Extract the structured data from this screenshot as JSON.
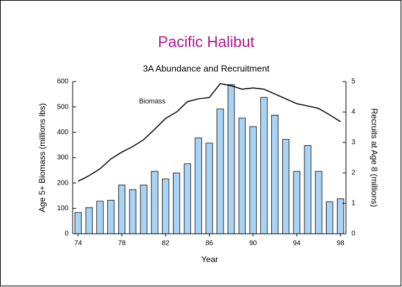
{
  "chart_data": {
    "type": "bar_line",
    "title": "Pacific Halibut",
    "subtitle": "3A Abundance and Recruitment",
    "x_label": "Year",
    "y_label": "Age 5+ Biomass (millions lbs)",
    "y2_label": "Recruits at Age 8 (millions)",
    "annotation": "Biomass",
    "x": [
      1974,
      1975,
      1976,
      1977,
      1978,
      1979,
      1980,
      1981,
      1982,
      1983,
      1984,
      1985,
      1986,
      1987,
      1988,
      1989,
      1990,
      1991,
      1992,
      1993,
      1994,
      1995,
      1996,
      1997,
      1998
    ],
    "xlim": [
      1973.5,
      1998.5
    ],
    "xticks": [
      {
        "value": 1974,
        "label": "74"
      },
      {
        "value": 1978,
        "label": "78"
      },
      {
        "value": 1982,
        "label": "82"
      },
      {
        "value": 1986,
        "label": "86"
      },
      {
        "value": 1990,
        "label": "90"
      },
      {
        "value": 1994,
        "label": "94"
      },
      {
        "value": 1998,
        "label": "98"
      }
    ],
    "ylim": [
      0,
      600
    ],
    "yticks": [
      0,
      100,
      200,
      300,
      400,
      500,
      600
    ],
    "y2lim": [
      0,
      5
    ],
    "y2ticks": [
      0,
      1,
      2,
      3,
      4,
      5
    ],
    "series": [
      {
        "name": "Recruits",
        "type": "bar",
        "axis": "y2",
        "color": "#a9d3f5",
        "values": [
          0.7,
          0.86,
          1.07,
          1.1,
          1.6,
          1.45,
          1.6,
          2.05,
          1.8,
          2.0,
          2.3,
          3.15,
          2.98,
          4.1,
          4.9,
          3.8,
          3.52,
          4.48,
          3.9,
          3.1,
          2.05,
          2.9,
          2.05,
          1.05,
          1.15
        ]
      },
      {
        "name": "Biomass",
        "type": "line",
        "axis": "y",
        "color": "#000000",
        "values": [
          207,
          229,
          256,
          295,
          322,
          344,
          371,
          412,
          455,
          480,
          521,
          532,
          537,
          592,
          584,
          570,
          575,
          570,
          551,
          532,
          513,
          504,
          494,
          469,
          442
        ]
      }
    ]
  }
}
